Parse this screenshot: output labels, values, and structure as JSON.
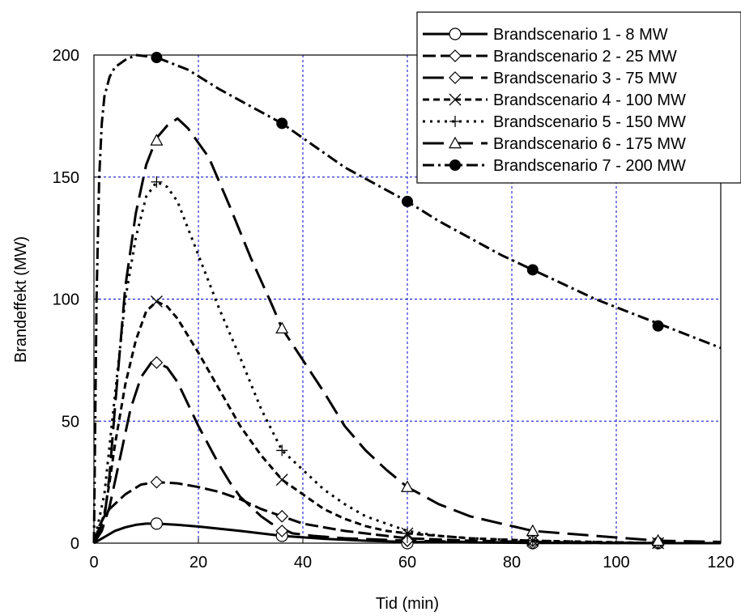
{
  "chart_data": {
    "type": "line",
    "xlabel": "Tid (min)",
    "ylabel": "Brandeffekt (MW)",
    "xlim": [
      0,
      120
    ],
    "ylim": [
      0,
      200
    ],
    "xticks": [
      0,
      20,
      40,
      60,
      80,
      100,
      120
    ],
    "yticks": [
      0,
      50,
      100,
      150,
      200
    ],
    "grid": true,
    "legend_position": "top-right",
    "series": [
      {
        "name": "Brandscenario 1 - 8 MW",
        "marker": "open-circle",
        "dash": "solid",
        "points": [
          [
            0,
            0
          ],
          [
            2,
            2.5
          ],
          [
            4,
            5
          ],
          [
            6,
            6.5
          ],
          [
            8,
            7.5
          ],
          [
            10,
            8
          ],
          [
            12,
            8
          ],
          [
            16,
            7.5
          ],
          [
            20,
            6.8
          ],
          [
            28,
            5
          ],
          [
            36,
            3
          ],
          [
            44,
            1.8
          ],
          [
            52,
            1
          ],
          [
            60,
            0.5
          ],
          [
            72,
            0.3
          ],
          [
            84,
            0.1
          ],
          [
            96,
            0.05
          ],
          [
            108,
            0
          ],
          [
            120,
            0
          ]
        ],
        "markers_at": [
          [
            12,
            8
          ],
          [
            36,
            3
          ],
          [
            60,
            0
          ],
          [
            84,
            0
          ],
          [
            108,
            0
          ]
        ]
      },
      {
        "name": "Brandscenario 2 - 25 MW",
        "marker": "open-diamond",
        "dash": "dash",
        "points": [
          [
            0,
            0
          ],
          [
            1,
            7
          ],
          [
            2,
            11
          ],
          [
            3,
            14
          ],
          [
            6,
            20
          ],
          [
            9,
            24
          ],
          [
            12,
            25
          ],
          [
            16,
            24.5
          ],
          [
            20,
            23
          ],
          [
            24,
            21
          ],
          [
            28,
            18
          ],
          [
            32,
            14
          ],
          [
            36,
            11
          ],
          [
            40,
            8
          ],
          [
            48,
            5
          ],
          [
            56,
            3
          ],
          [
            60,
            2
          ],
          [
            72,
            1
          ],
          [
            84,
            0.5
          ],
          [
            96,
            0.2
          ],
          [
            108,
            0
          ],
          [
            120,
            0
          ]
        ],
        "markers_at": [
          [
            12,
            25
          ],
          [
            36,
            11
          ],
          [
            60,
            1
          ],
          [
            84,
            0
          ],
          [
            108,
            0
          ]
        ]
      },
      {
        "name": "Brandscenario 3 - 75 MW",
        "marker": "open-diamond",
        "dash": "long-dash",
        "points": [
          [
            0,
            0
          ],
          [
            1.5,
            5
          ],
          [
            3,
            15
          ],
          [
            5,
            35
          ],
          [
            7,
            55
          ],
          [
            9,
            68
          ],
          [
            11,
            74
          ],
          [
            12,
            74
          ],
          [
            14,
            72
          ],
          [
            16,
            66
          ],
          [
            18,
            57
          ],
          [
            20,
            48
          ],
          [
            22,
            40
          ],
          [
            24,
            32
          ],
          [
            26,
            25
          ],
          [
            28,
            19
          ],
          [
            30,
            15
          ],
          [
            32,
            11
          ],
          [
            34,
            8
          ],
          [
            36,
            6
          ],
          [
            38,
            4
          ],
          [
            42,
            3
          ],
          [
            48,
            2
          ],
          [
            60,
            1
          ],
          [
            72,
            0.5
          ],
          [
            84,
            0.2
          ],
          [
            96,
            0.1
          ],
          [
            108,
            0
          ],
          [
            120,
            0
          ]
        ],
        "markers_at": [
          [
            12,
            74
          ],
          [
            36,
            5
          ],
          [
            60,
            1
          ],
          [
            84,
            1
          ],
          [
            108,
            0
          ]
        ]
      },
      {
        "name": "Brandscenario 4 - 100 MW",
        "marker": "x",
        "dash": "short-dash",
        "points": [
          [
            0,
            0
          ],
          [
            2,
            12
          ],
          [
            3,
            25
          ],
          [
            4,
            40
          ],
          [
            6,
            65
          ],
          [
            8,
            83
          ],
          [
            10,
            95
          ],
          [
            12,
            99
          ],
          [
            14,
            97
          ],
          [
            16,
            92
          ],
          [
            20,
            78
          ],
          [
            24,
            63
          ],
          [
            28,
            48
          ],
          [
            32,
            36
          ],
          [
            36,
            26
          ],
          [
            40,
            20
          ],
          [
            44,
            14
          ],
          [
            48,
            10
          ],
          [
            52,
            7
          ],
          [
            56,
            5
          ],
          [
            60,
            4
          ],
          [
            72,
            2
          ],
          [
            84,
            1
          ],
          [
            96,
            0.5
          ],
          [
            108,
            0
          ],
          [
            120,
            0
          ]
        ],
        "markers_at": [
          [
            12,
            99
          ],
          [
            36,
            26
          ],
          [
            60,
            4
          ],
          [
            84,
            1
          ],
          [
            108,
            0
          ]
        ]
      },
      {
        "name": "Brandscenario 5 - 150 MW",
        "marker": "plus",
        "dash": "dot",
        "points": [
          [
            0,
            0
          ],
          [
            2,
            20
          ],
          [
            4,
            60
          ],
          [
            6,
            100
          ],
          [
            8,
            125
          ],
          [
            10,
            142
          ],
          [
            12,
            148
          ],
          [
            14,
            146
          ],
          [
            16,
            140
          ],
          [
            20,
            118
          ],
          [
            24,
            96
          ],
          [
            28,
            76
          ],
          [
            32,
            55
          ],
          [
            36,
            38
          ],
          [
            40,
            30
          ],
          [
            44,
            22
          ],
          [
            48,
            16
          ],
          [
            52,
            11
          ],
          [
            56,
            8
          ],
          [
            60,
            5
          ],
          [
            66,
            3
          ],
          [
            72,
            2
          ],
          [
            84,
            1
          ],
          [
            96,
            0.5
          ],
          [
            108,
            0
          ],
          [
            120,
            0
          ]
        ],
        "markers_at": [
          [
            12,
            148
          ],
          [
            36,
            38
          ],
          [
            60,
            4
          ],
          [
            84,
            1
          ],
          [
            108,
            0
          ]
        ]
      },
      {
        "name": "Brandscenario 6 - 175 MW",
        "marker": "open-triangle",
        "dash": "long-dash",
        "points": [
          [
            0,
            0
          ],
          [
            2,
            10
          ],
          [
            3,
            28
          ],
          [
            4,
            55
          ],
          [
            5,
            80
          ],
          [
            6,
            105
          ],
          [
            8,
            135
          ],
          [
            10,
            155
          ],
          [
            12,
            166
          ],
          [
            14,
            171
          ],
          [
            16,
            174
          ],
          [
            18,
            170
          ],
          [
            22,
            158
          ],
          [
            26,
            138
          ],
          [
            30,
            117
          ],
          [
            34,
            98
          ],
          [
            36,
            88
          ],
          [
            40,
            75
          ],
          [
            44,
            62
          ],
          [
            48,
            48
          ],
          [
            52,
            38
          ],
          [
            56,
            30
          ],
          [
            60,
            23
          ],
          [
            66,
            16
          ],
          [
            72,
            11
          ],
          [
            78,
            8
          ],
          [
            84,
            5
          ],
          [
            90,
            4
          ],
          [
            96,
            3
          ],
          [
            108,
            1
          ],
          [
            120,
            0.5
          ]
        ],
        "markers_at": [
          [
            12,
            165
          ],
          [
            36,
            88
          ],
          [
            60,
            23
          ],
          [
            84,
            5
          ],
          [
            108,
            1
          ]
        ]
      },
      {
        "name": "Brandscenario 7 - 200 MW",
        "marker": "filled-circle",
        "dash": "dash-dot",
        "points": [
          [
            0,
            0
          ],
          [
            0.5,
            100
          ],
          [
            1,
            150
          ],
          [
            1.5,
            172
          ],
          [
            2,
            183
          ],
          [
            3,
            191
          ],
          [
            4,
            195
          ],
          [
            6,
            198
          ],
          [
            8,
            200
          ],
          [
            12,
            199
          ],
          [
            18,
            194
          ],
          [
            24,
            186
          ],
          [
            30,
            179
          ],
          [
            36,
            172
          ],
          [
            42,
            163
          ],
          [
            48,
            154
          ],
          [
            54,
            147
          ],
          [
            60,
            140
          ],
          [
            66,
            132
          ],
          [
            72,
            125
          ],
          [
            78,
            118
          ],
          [
            84,
            112
          ],
          [
            90,
            106
          ],
          [
            96,
            100
          ],
          [
            102,
            95
          ],
          [
            108,
            90
          ],
          [
            114,
            85
          ],
          [
            120,
            80
          ]
        ],
        "markers_at": [
          [
            12,
            199
          ],
          [
            36,
            172
          ],
          [
            60,
            140
          ],
          [
            84,
            112
          ],
          [
            108,
            89
          ]
        ]
      }
    ]
  }
}
